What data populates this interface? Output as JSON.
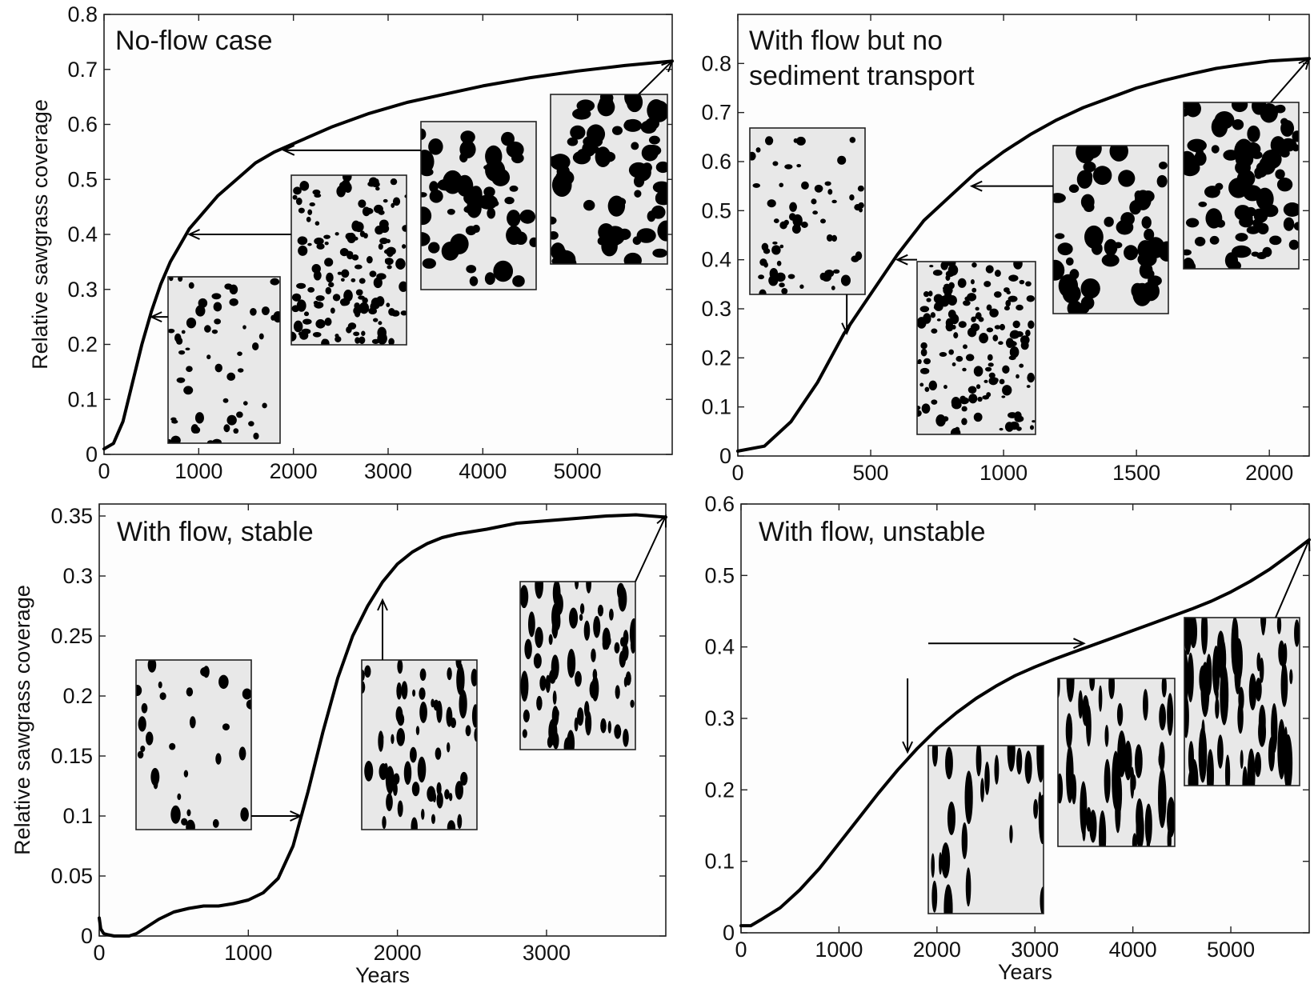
{
  "chart_data": [
    {
      "type": "line",
      "title": "No-flow case",
      "xlabel": "",
      "ylabel": "Relative sawgrass coverage",
      "xlim": [
        0,
        6000
      ],
      "ylim": [
        0,
        0.8
      ],
      "xticks": [
        "0",
        "1000",
        "2000",
        "3000",
        "4000",
        "5000"
      ],
      "yticks": [
        "0",
        "0.1",
        "0.2",
        "0.3",
        "0.4",
        "0.5",
        "0.6",
        "0.7",
        "0.8"
      ],
      "series": [
        {
          "x": [
            0,
            100,
            200,
            300,
            400,
            500,
            600,
            700,
            800,
            900,
            1000,
            1200,
            1400,
            1600,
            1800,
            2000,
            2400,
            2800,
            3200,
            3600,
            4000,
            4500,
            5000,
            5500,
            6000
          ],
          "y": [
            0.01,
            0.02,
            0.06,
            0.13,
            0.2,
            0.26,
            0.31,
            0.35,
            0.38,
            0.41,
            0.43,
            0.47,
            0.5,
            0.53,
            0.55,
            0.565,
            0.595,
            0.62,
            0.64,
            0.655,
            0.67,
            0.685,
            0.697,
            0.707,
            0.715
          ]
        }
      ],
      "insets": [
        {
          "pattern": "sparse-dots",
          "points_to": [
            500,
            0.25
          ]
        },
        {
          "pattern": "dense-dots",
          "points_to": [
            900,
            0.4
          ]
        },
        {
          "pattern": "connected-patches",
          "points_to": [
            1900,
            0.553
          ]
        },
        {
          "pattern": "labyrinth",
          "points_to": [
            6000,
            0.715
          ]
        }
      ]
    },
    {
      "type": "line",
      "title": "With flow but no sediment transport",
      "title_lines": [
        "With flow but no",
        "sediment transport"
      ],
      "xlabel": "",
      "ylabel": "",
      "xlim": [
        0,
        2150
      ],
      "ylim": [
        0,
        0.9
      ],
      "xticks": [
        "0",
        "500",
        "1000",
        "1500",
        "2000"
      ],
      "yticks": [
        "0",
        "0.1",
        "0.2",
        "0.3",
        "0.4",
        "0.5",
        "0.6",
        "0.7",
        "0.8"
      ],
      "series": [
        {
          "x": [
            0,
            100,
            200,
            300,
            400,
            500,
            600,
            700,
            800,
            900,
            1000,
            1100,
            1200,
            1300,
            1400,
            1500,
            1600,
            1700,
            1800,
            1900,
            2000,
            2150
          ],
          "y": [
            0.01,
            0.02,
            0.07,
            0.15,
            0.25,
            0.33,
            0.41,
            0.48,
            0.53,
            0.58,
            0.62,
            0.655,
            0.685,
            0.71,
            0.73,
            0.75,
            0.765,
            0.778,
            0.79,
            0.798,
            0.805,
            0.81
          ]
        }
      ],
      "insets": [
        {
          "pattern": "sparse-dots",
          "points_to": [
            410,
            0.25
          ]
        },
        {
          "pattern": "dense-dots",
          "points_to": [
            600,
            0.4
          ]
        },
        {
          "pattern": "connected-patches",
          "points_to": [
            880,
            0.55
          ]
        },
        {
          "pattern": "labyrinth",
          "points_to": [
            2150,
            0.81
          ]
        }
      ]
    },
    {
      "type": "line",
      "title": "With flow, stable",
      "xlabel": "Years",
      "ylabel": "Relative sawgrass coverage",
      "xlim": [
        0,
        3800
      ],
      "ylim": [
        0,
        0.36
      ],
      "xticks": [
        "0",
        "1000",
        "2000",
        "3000"
      ],
      "yticks": [
        "0",
        "0.05",
        "0.1",
        "0.15",
        "0.2",
        "0.25",
        "0.3",
        "0.35"
      ],
      "series": [
        {
          "x": [
            0,
            10,
            30,
            60,
            100,
            150,
            200,
            250,
            300,
            400,
            500,
            600,
            700,
            800,
            900,
            1000,
            1100,
            1200,
            1300,
            1400,
            1500,
            1600,
            1700,
            1800,
            1900,
            2000,
            2100,
            2200,
            2300,
            2400,
            2500,
            2600,
            2800,
            3000,
            3200,
            3400,
            3600,
            3800
          ],
          "y": [
            0.015,
            0.006,
            0.002,
            0.001,
            0,
            0,
            0,
            0.002,
            0.006,
            0.014,
            0.02,
            0.023,
            0.025,
            0.025,
            0.027,
            0.03,
            0.036,
            0.048,
            0.075,
            0.12,
            0.17,
            0.215,
            0.25,
            0.275,
            0.295,
            0.31,
            0.32,
            0.327,
            0.332,
            0.335,
            0.337,
            0.339,
            0.344,
            0.346,
            0.348,
            0.35,
            0.351,
            0.349
          ]
        }
      ],
      "insets": [
        {
          "pattern": "sparse-specks",
          "points_to": [
            1350,
            0.1
          ]
        },
        {
          "pattern": "elongated-streaks",
          "points_to": [
            1900,
            0.28
          ]
        },
        {
          "pattern": "elongated-streaks-dense",
          "points_to": [
            3800,
            0.35
          ]
        }
      ]
    },
    {
      "type": "line",
      "title": "With flow, unstable",
      "xlabel": "Years",
      "ylabel": "",
      "xlim": [
        0,
        5800
      ],
      "ylim": [
        0,
        0.6
      ],
      "xticks": [
        "0",
        "1000",
        "2000",
        "3000",
        "4000",
        "5000"
      ],
      "yticks": [
        "0",
        "0.1",
        "0.2",
        "0.3",
        "0.4",
        "0.5",
        "0.6"
      ],
      "series": [
        {
          "x": [
            0,
            100,
            200,
            400,
            600,
            800,
            1000,
            1200,
            1400,
            1600,
            1800,
            2000,
            2200,
            2400,
            2600,
            2800,
            3000,
            3200,
            3400,
            3600,
            3800,
            4000,
            4200,
            4400,
            4600,
            4800,
            5000,
            5200,
            5400,
            5600,
            5800
          ],
          "y": [
            0.01,
            0.01,
            0.018,
            0.035,
            0.06,
            0.09,
            0.125,
            0.16,
            0.195,
            0.228,
            0.258,
            0.285,
            0.308,
            0.328,
            0.345,
            0.36,
            0.372,
            0.383,
            0.393,
            0.403,
            0.413,
            0.423,
            0.433,
            0.443,
            0.453,
            0.464,
            0.477,
            0.492,
            0.509,
            0.529,
            0.55
          ]
        }
      ],
      "insets": [
        {
          "pattern": "fine-streaks",
          "points_to": [
            1700,
            0.253
          ]
        },
        {
          "pattern": "streaks",
          "points_to": [
            3500,
            0.405
          ]
        },
        {
          "pattern": "dense-streaks",
          "points_to": [
            5800,
            0.55
          ]
        }
      ]
    }
  ]
}
